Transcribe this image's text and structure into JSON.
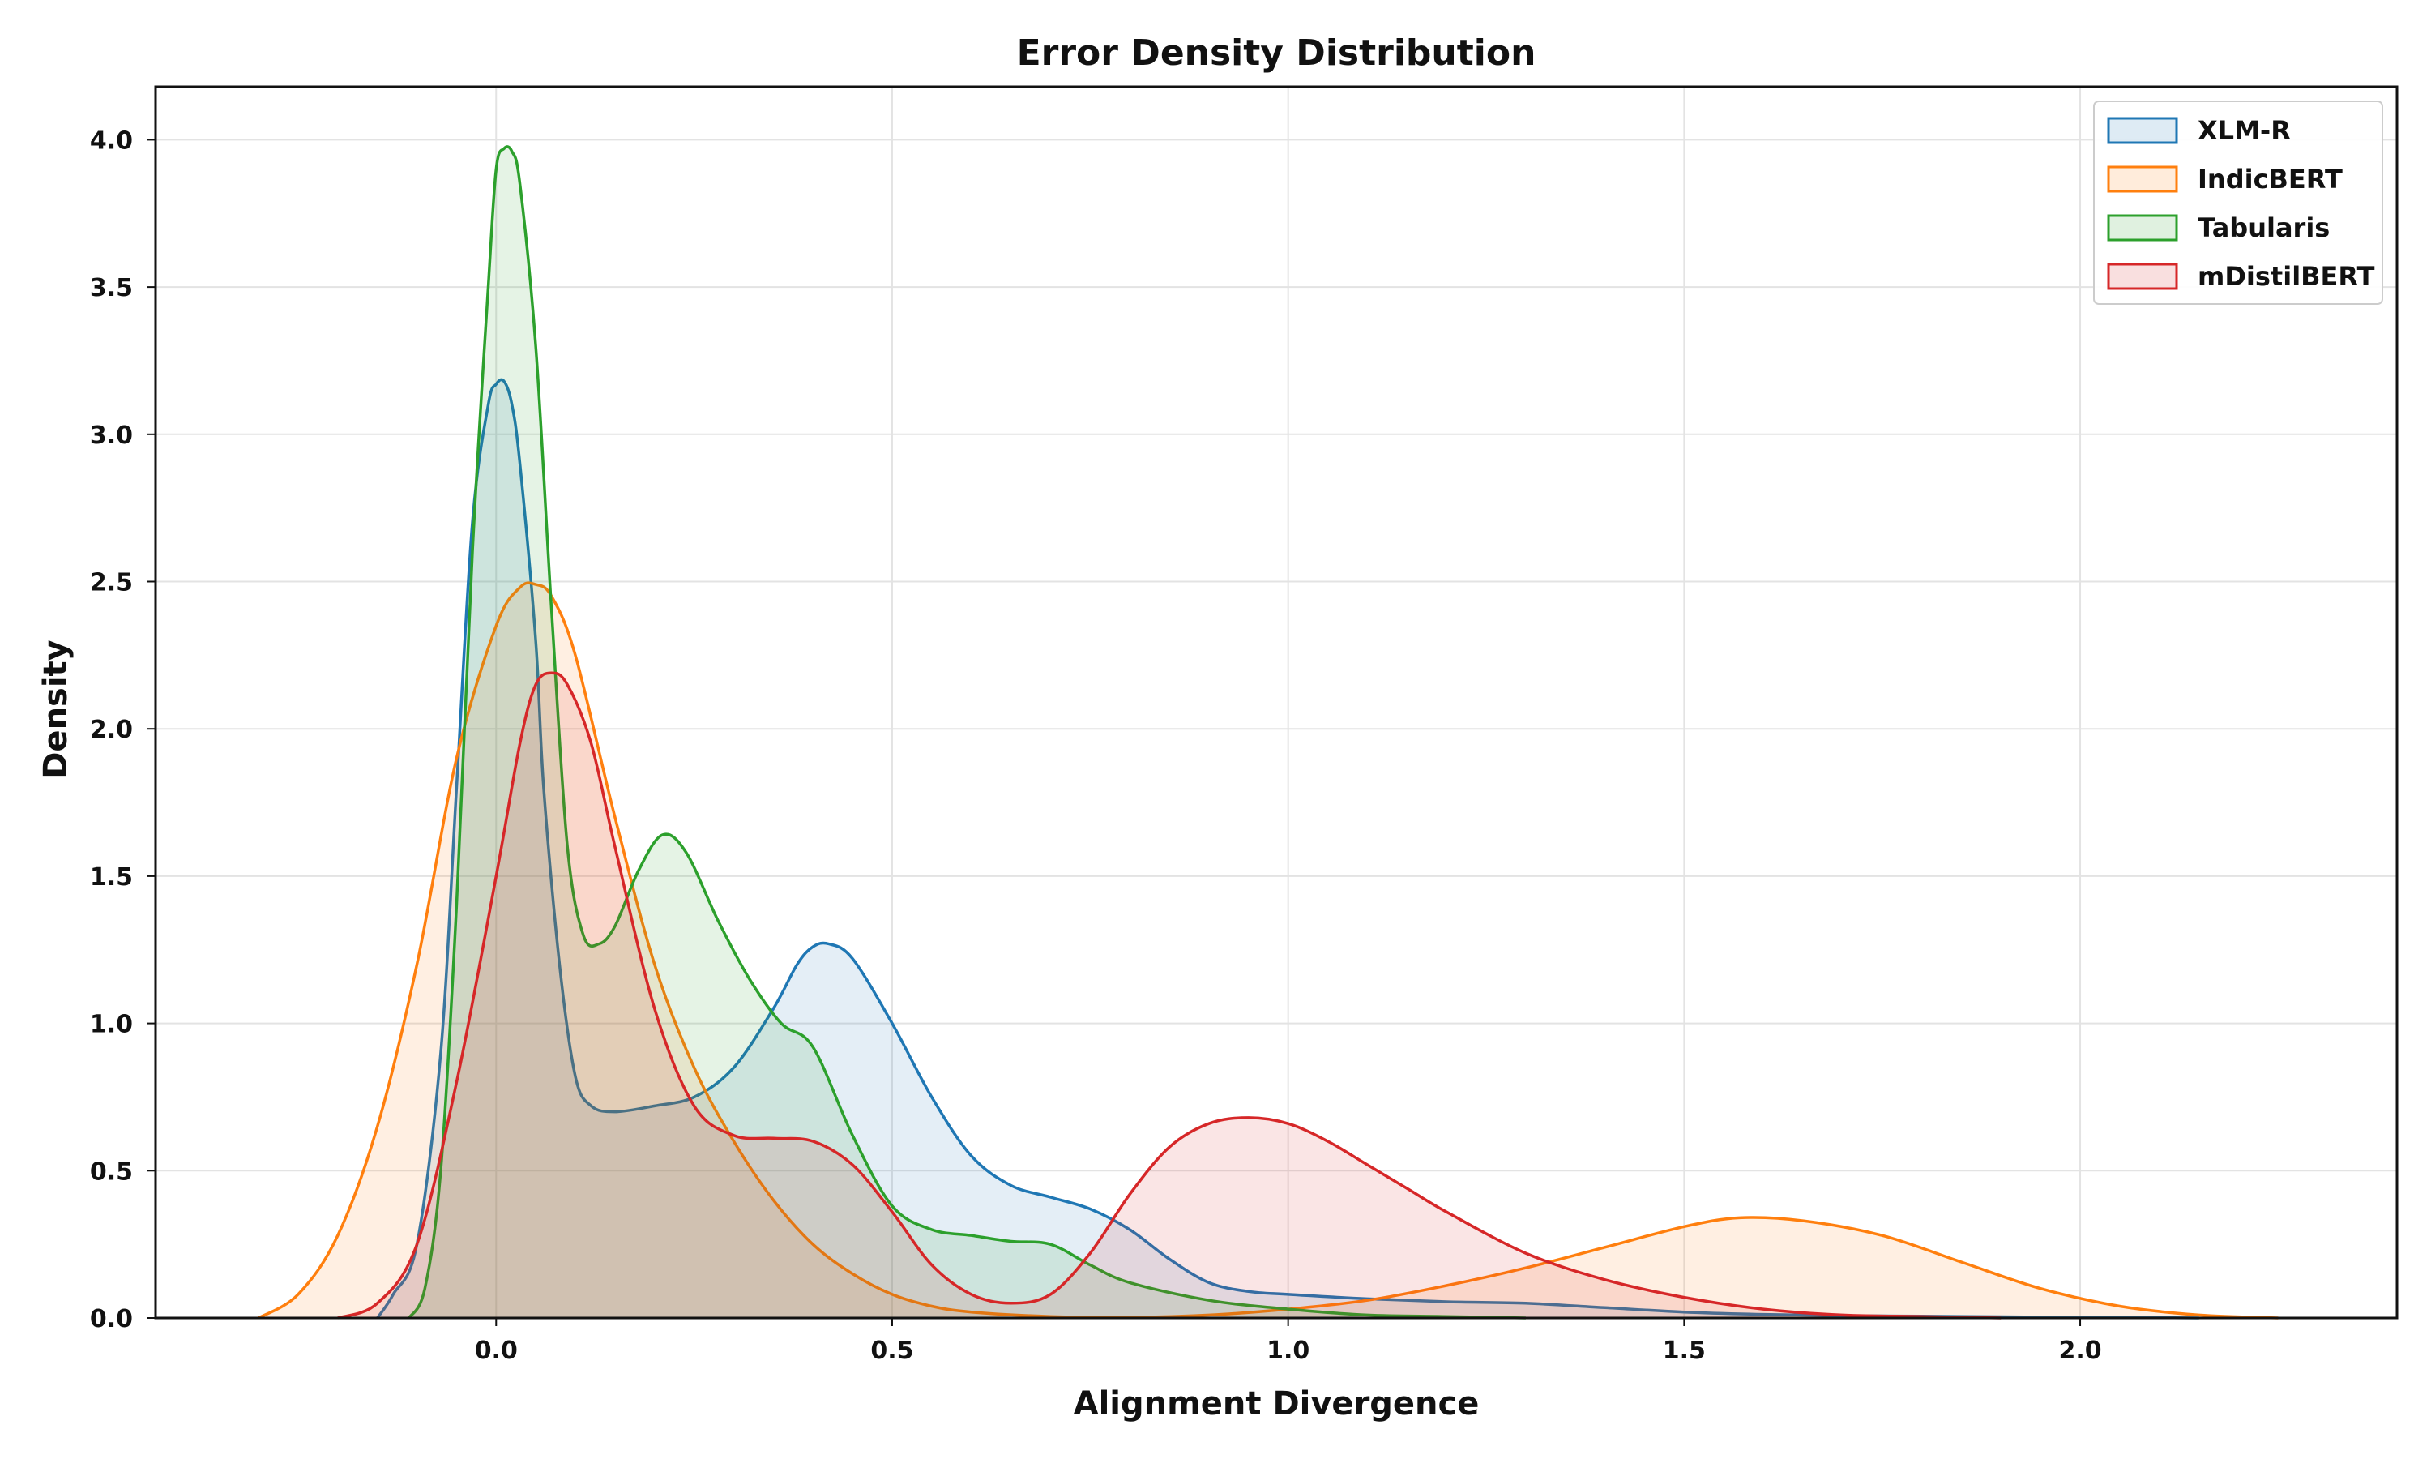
{
  "chart_data": {
    "type": "area",
    "title": "Error Density Distribution",
    "xlabel": "Alignment Divergence",
    "ylabel": "Density",
    "xlim": [
      -0.43,
      2.4
    ],
    "ylim": [
      0,
      4.18
    ],
    "xticks": [
      0.0,
      0.5,
      1.0,
      1.5,
      2.0
    ],
    "xtick_labels": [
      "0.0",
      "0.5",
      "1.0",
      "1.5",
      "2.0"
    ],
    "yticks": [
      0.0,
      0.5,
      1.0,
      1.5,
      2.0,
      2.5,
      3.0,
      3.5,
      4.0
    ],
    "ytick_labels": [
      "0.0",
      "0.5",
      "1.0",
      "1.5",
      "2.0",
      "2.5",
      "3.0",
      "3.5",
      "4.0"
    ],
    "grid": true,
    "legend_position": "top-right",
    "series": [
      {
        "name": "XLM-R",
        "color": "#1f77b4",
        "x": [
          -0.15,
          -0.13,
          -0.1,
          -0.07,
          -0.05,
          -0.03,
          -0.01,
          0.0,
          0.01,
          0.02,
          0.03,
          0.05,
          0.06,
          0.08,
          0.1,
          0.12,
          0.15,
          0.2,
          0.25,
          0.3,
          0.35,
          0.38,
          0.4,
          0.42,
          0.45,
          0.5,
          0.55,
          0.6,
          0.65,
          0.7,
          0.75,
          0.8,
          0.85,
          0.9,
          0.95,
          1.0,
          1.1,
          1.2,
          1.3,
          1.4,
          1.5,
          1.6,
          1.7,
          1.8,
          1.9,
          2.0,
          2.1,
          2.15
        ],
        "y": [
          0.0,
          0.08,
          0.25,
          0.9,
          1.8,
          2.7,
          3.1,
          3.17,
          3.18,
          3.1,
          2.9,
          2.3,
          1.8,
          1.2,
          0.82,
          0.72,
          0.7,
          0.72,
          0.75,
          0.85,
          1.05,
          1.2,
          1.26,
          1.27,
          1.22,
          1.0,
          0.75,
          0.55,
          0.45,
          0.41,
          0.37,
          0.3,
          0.2,
          0.12,
          0.09,
          0.08,
          0.065,
          0.055,
          0.05,
          0.035,
          0.02,
          0.012,
          0.008,
          0.006,
          0.004,
          0.002,
          0.001,
          0.0
        ]
      },
      {
        "name": "IndicBERT",
        "color": "#ff7f0e",
        "x": [
          -0.3,
          -0.25,
          -0.2,
          -0.15,
          -0.1,
          -0.05,
          0.0,
          0.03,
          0.05,
          0.07,
          0.1,
          0.15,
          0.2,
          0.25,
          0.3,
          0.35,
          0.4,
          0.45,
          0.5,
          0.55,
          0.6,
          0.7,
          0.8,
          0.9,
          1.0,
          1.1,
          1.2,
          1.3,
          1.4,
          1.5,
          1.57,
          1.65,
          1.75,
          1.85,
          1.95,
          2.05,
          2.15,
          2.25
        ],
        "y": [
          0.0,
          0.08,
          0.28,
          0.65,
          1.2,
          1.9,
          2.35,
          2.48,
          2.49,
          2.45,
          2.25,
          1.7,
          1.2,
          0.85,
          0.6,
          0.4,
          0.25,
          0.15,
          0.08,
          0.04,
          0.02,
          0.005,
          0.002,
          0.01,
          0.03,
          0.06,
          0.11,
          0.17,
          0.24,
          0.31,
          0.34,
          0.33,
          0.28,
          0.19,
          0.1,
          0.04,
          0.01,
          0.0
        ]
      },
      {
        "name": "Tabularis",
        "color": "#2ca02c",
        "x": [
          -0.11,
          -0.09,
          -0.07,
          -0.05,
          -0.03,
          -0.01,
          0.0,
          0.01,
          0.02,
          0.03,
          0.05,
          0.07,
          0.09,
          0.11,
          0.13,
          0.15,
          0.18,
          0.21,
          0.24,
          0.28,
          0.32,
          0.36,
          0.4,
          0.45,
          0.5,
          0.55,
          0.6,
          0.65,
          0.7,
          0.75,
          0.8,
          0.9,
          1.0,
          1.1,
          1.2,
          1.3
        ],
        "y": [
          0.0,
          0.1,
          0.5,
          1.4,
          2.6,
          3.5,
          3.9,
          3.97,
          3.96,
          3.85,
          3.3,
          2.4,
          1.6,
          1.3,
          1.27,
          1.33,
          1.52,
          1.64,
          1.58,
          1.35,
          1.15,
          1.0,
          0.92,
          0.62,
          0.38,
          0.3,
          0.28,
          0.26,
          0.25,
          0.18,
          0.12,
          0.06,
          0.03,
          0.01,
          0.005,
          0.0
        ]
      },
      {
        "name": "mDistilBERT",
        "color": "#d62728",
        "x": [
          -0.2,
          -0.15,
          -0.1,
          -0.05,
          0.0,
          0.03,
          0.05,
          0.07,
          0.09,
          0.12,
          0.15,
          0.2,
          0.25,
          0.3,
          0.35,
          0.4,
          0.45,
          0.5,
          0.55,
          0.6,
          0.65,
          0.7,
          0.75,
          0.8,
          0.85,
          0.9,
          0.95,
          1.0,
          1.05,
          1.1,
          1.15,
          1.2,
          1.3,
          1.4,
          1.5,
          1.6,
          1.7,
          1.8,
          1.9
        ],
        "y": [
          0.0,
          0.05,
          0.25,
          0.8,
          1.5,
          1.95,
          2.15,
          2.19,
          2.15,
          1.95,
          1.6,
          1.05,
          0.72,
          0.62,
          0.61,
          0.6,
          0.52,
          0.36,
          0.18,
          0.08,
          0.05,
          0.08,
          0.22,
          0.42,
          0.58,
          0.66,
          0.68,
          0.66,
          0.6,
          0.52,
          0.44,
          0.36,
          0.22,
          0.13,
          0.07,
          0.03,
          0.01,
          0.005,
          0.0
        ]
      }
    ]
  }
}
